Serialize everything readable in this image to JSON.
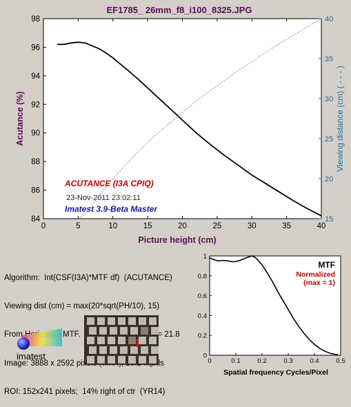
{
  "chart_data": [
    {
      "type": "line",
      "title": "EF1785_ 26mm_f8_i100_8325.JPG",
      "xlabel": "Picture height (cm)",
      "ylabel": "Acutance (%)",
      "y2label": "Viewing distance (cm) ( - - - )",
      "xlim": [
        0,
        40
      ],
      "ylim": [
        84,
        98
      ],
      "y2lim": [
        15,
        40
      ],
      "xticks": [
        "0",
        "5",
        "10",
        "15",
        "20",
        "25",
        "30",
        "35",
        "40"
      ],
      "yticks": [
        "84",
        "86",
        "88",
        "90",
        "92",
        "94",
        "96",
        "98"
      ],
      "y2ticks": [
        "15",
        "20",
        "25",
        "30",
        "35",
        "40"
      ],
      "grid": false,
      "series": [
        {
          "name": "ACUTANCE",
          "style": "solid",
          "color": "#000000",
          "axis": "left",
          "x": [
            2,
            3,
            4,
            5,
            6,
            7,
            8,
            9,
            10,
            12,
            14,
            16,
            18,
            20,
            22,
            24,
            26,
            28,
            30,
            32,
            34,
            36,
            38,
            40
          ],
          "y": [
            96.2,
            96.2,
            96.3,
            96.35,
            96.3,
            96.1,
            95.9,
            95.6,
            95.25,
            94.45,
            93.6,
            92.7,
            91.8,
            90.9,
            90.0,
            89.2,
            88.45,
            87.75,
            87.05,
            86.45,
            85.85,
            85.25,
            84.7,
            84.2
          ]
        },
        {
          "name": "Viewing distance",
          "style": "dashed",
          "color": "#4a72d8",
          "axis": "right",
          "x": [
            5,
            6,
            8,
            10,
            12,
            14,
            16,
            18,
            20,
            22,
            24,
            26,
            28,
            30,
            32,
            34,
            36,
            38,
            40
          ],
          "y": [
            15,
            15.5,
            17.9,
            20.0,
            21.9,
            23.7,
            25.3,
            26.8,
            28.3,
            29.7,
            31.0,
            32.2,
            33.5,
            34.6,
            35.8,
            36.9,
            37.9,
            39.0,
            40.0
          ]
        }
      ],
      "annotations": {
        "acutance": "ACUTANCE (I3A CPIQ)",
        "timestamp": "23-Nov-2011 23:02:11",
        "version": "Imatest 3.9-Beta Master"
      },
      "colors": {
        "acutance_label": "#c00000",
        "version_label": "#1a1aa0",
        "title": "#5a0f5a",
        "right_axis": "#1f6f9f"
      }
    },
    {
      "type": "line",
      "title": "MTF",
      "subtitle": "Normalized",
      "subtitle2": "(max = 1)",
      "xlabel": "Spatial frequency Cycles/Pixel",
      "xlim": [
        0,
        0.5
      ],
      "ylim": [
        0,
        1
      ],
      "xticks": [
        "0",
        "0.1",
        "0.2",
        "0.3",
        "0.4",
        "0.5"
      ],
      "yticks": [
        "0",
        "0.2",
        "0.4",
        "0.6",
        "0.8",
        "1"
      ],
      "series": [
        {
          "name": "MTF",
          "x": [
            0,
            0.01,
            0.03,
            0.05,
            0.07,
            0.09,
            0.11,
            0.13,
            0.15,
            0.16,
            0.17,
            0.18,
            0.2,
            0.22,
            0.24,
            0.26,
            0.28,
            0.3,
            0.32,
            0.34,
            0.36,
            0.38,
            0.4,
            0.42,
            0.44,
            0.46,
            0.48,
            0.49
          ],
          "y": [
            0.98,
            0.97,
            0.95,
            0.955,
            0.95,
            0.94,
            0.95,
            0.97,
            0.99,
            1.0,
            0.99,
            0.97,
            0.91,
            0.83,
            0.74,
            0.64,
            0.55,
            0.46,
            0.37,
            0.29,
            0.22,
            0.16,
            0.11,
            0.07,
            0.04,
            0.02,
            0.01,
            0.005
          ]
        }
      ],
      "colors": {
        "subtitle": "#c00000"
      }
    }
  ],
  "info": {
    "line1": "Algorithm:  Int(CSF(I3A)*MTF df)  (ACUTANCE)",
    "line2": "Viewing dist (cm) = max(20*sqrt(PH/10), 15)",
    "line3": "From Horizontal MTF.  Estm. chart contrast = 21.8",
    "line4": "Image: 3888 x 2592 pixels (WxH); 10.1 Mpxls",
    "line5": "ROI: 152x241 pixels;  14% right of ctr  (YR14)"
  },
  "logo": {
    "text": "imatest"
  }
}
